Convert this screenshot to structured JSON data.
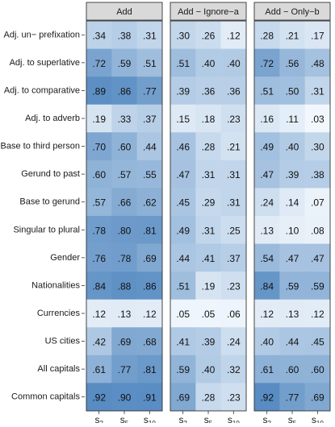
{
  "chart_data": {
    "type": "heatmap",
    "facets": [
      "Add",
      "Add − Ignore−a",
      "Add − Only−b"
    ],
    "rows": [
      "Adj. un− prefixation",
      "Adj. to superlative",
      "Adj. to comparative",
      "Adj. to adverb",
      "Base to third person",
      "Gerund to past",
      "Base to gerund",
      "Singular to plural",
      "Gender",
      "Nationalities",
      "Currencies",
      "US cities",
      "All capitals",
      "Common capitals"
    ],
    "columns": [
      {
        "base": "s",
        "sub": "2"
      },
      {
        "base": "s",
        "sub": "5"
      },
      {
        "base": "s",
        "sub": "10"
      }
    ],
    "values": [
      [
        [
          0.34,
          0.38,
          0.31
        ],
        [
          0.72,
          0.59,
          0.51
        ],
        [
          0.89,
          0.86,
          0.77
        ],
        [
          0.19,
          0.33,
          0.37
        ],
        [
          0.7,
          0.6,
          0.44
        ],
        [
          0.6,
          0.57,
          0.55
        ],
        [
          0.57,
          0.66,
          0.62
        ],
        [
          0.78,
          0.8,
          0.81
        ],
        [
          0.76,
          0.78,
          0.69
        ],
        [
          0.84,
          0.88,
          0.86
        ],
        [
          0.12,
          0.13,
          0.12
        ],
        [
          0.42,
          0.69,
          0.68
        ],
        [
          0.61,
          0.77,
          0.81
        ],
        [
          0.92,
          0.9,
          0.91
        ]
      ],
      [
        [
          0.3,
          0.26,
          0.12
        ],
        [
          0.51,
          0.4,
          0.4
        ],
        [
          0.39,
          0.36,
          0.36
        ],
        [
          0.15,
          0.18,
          0.23
        ],
        [
          0.46,
          0.28,
          0.21
        ],
        [
          0.47,
          0.31,
          0.31
        ],
        [
          0.45,
          0.29,
          0.31
        ],
        [
          0.49,
          0.31,
          0.25
        ],
        [
          0.44,
          0.41,
          0.37
        ],
        [
          0.51,
          0.19,
          0.23
        ],
        [
          0.05,
          0.05,
          0.06
        ],
        [
          0.41,
          0.39,
          0.24
        ],
        [
          0.59,
          0.4,
          0.32
        ],
        [
          0.69,
          0.28,
          0.23
        ]
      ],
      [
        [
          0.28,
          0.21,
          0.17
        ],
        [
          0.72,
          0.56,
          0.48
        ],
        [
          0.51,
          0.5,
          0.31
        ],
        [
          0.16,
          0.11,
          0.03
        ],
        [
          0.49,
          0.4,
          0.3
        ],
        [
          0.47,
          0.39,
          0.38
        ],
        [
          0.24,
          0.14,
          0.07
        ],
        [
          0.13,
          0.1,
          0.08
        ],
        [
          0.54,
          0.47,
          0.47
        ],
        [
          0.84,
          0.59,
          0.59
        ],
        [
          0.12,
          0.13,
          0.12
        ],
        [
          0.4,
          0.44,
          0.45
        ],
        [
          0.61,
          0.6,
          0.6
        ],
        [
          0.92,
          0.77,
          0.69
        ]
      ]
    ],
    "value_range": [
      0,
      1
    ],
    "color_low": "#f7fbff",
    "color_high": "#4a82bd",
    "facet_strip_color": "#d9d9d9",
    "grid": false,
    "legend": "none"
  }
}
